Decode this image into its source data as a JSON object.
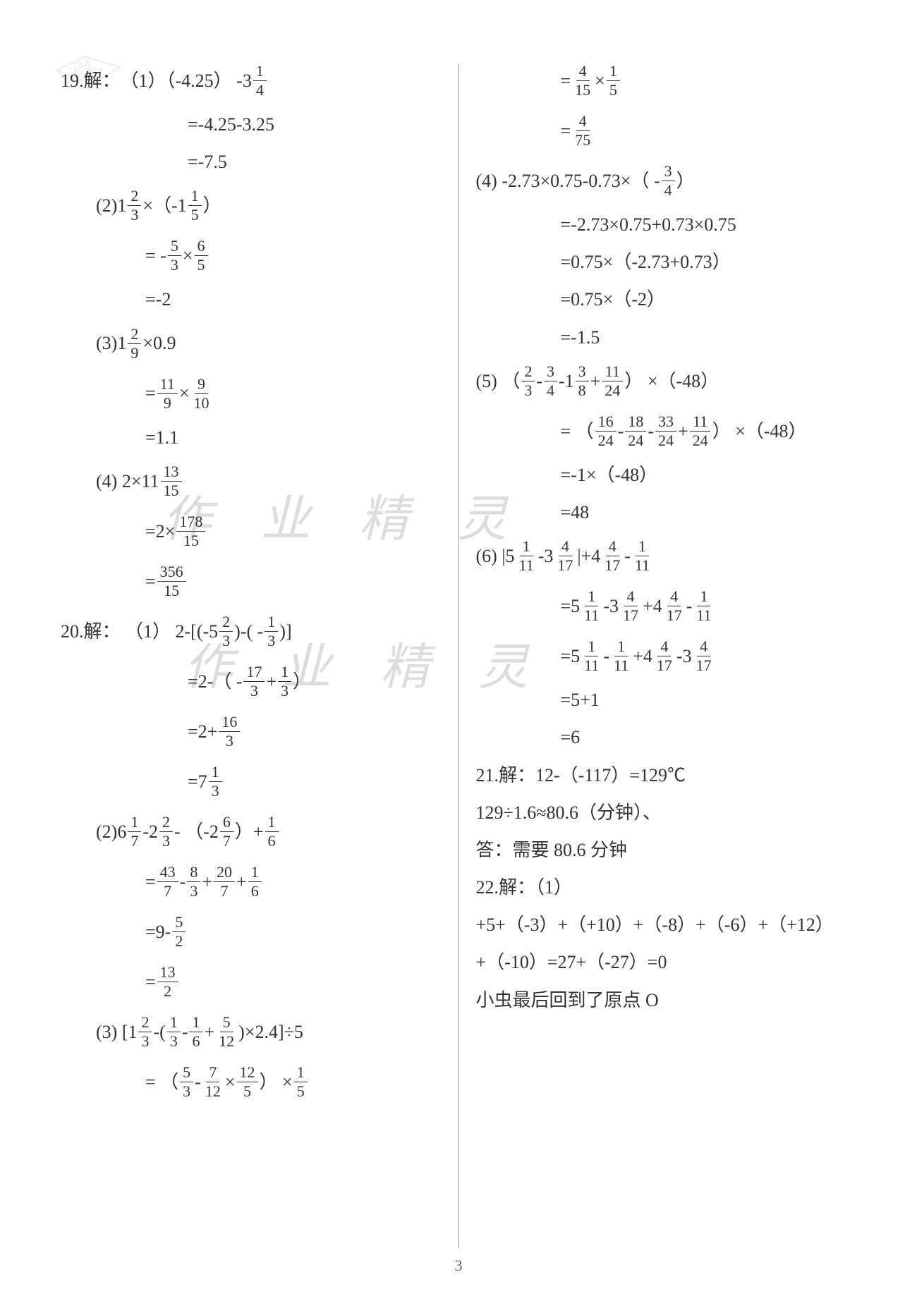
{
  "page_number": "3",
  "watermark_text": "作 业 精 灵",
  "book_stamp_text": "作业\n精灵",
  "left_column": [
    {
      "indent": 0,
      "parts": [
        {
          "t": "19.解："
        },
        {
          "t": "（1）（-4.25） -"
        },
        {
          "mix": "3",
          "n": "1",
          "d": "4"
        }
      ]
    },
    {
      "indent": 3,
      "parts": [
        {
          "t": "=-4.25-3.25"
        }
      ]
    },
    {
      "indent": 3,
      "parts": [
        {
          "t": "=-7.5"
        }
      ]
    },
    {
      "indent": 1,
      "parts": [
        {
          "t": "(2)  "
        },
        {
          "mix": "1",
          "n": "2",
          "d": "3"
        },
        {
          "t": " ×（ "
        },
        {
          "mix": "-1",
          "n": "1",
          "d": "5"
        },
        {
          "t": " ）"
        }
      ]
    },
    {
      "indent": 2,
      "parts": [
        {
          "t": "= - "
        },
        {
          "n": "5",
          "d": "3"
        },
        {
          "t": " × "
        },
        {
          "n": "6",
          "d": "5"
        }
      ]
    },
    {
      "indent": 2,
      "parts": [
        {
          "t": "=-2"
        }
      ]
    },
    {
      "indent": 1,
      "parts": [
        {
          "t": "(3)  "
        },
        {
          "mix": "1",
          "n": "2",
          "d": "9"
        },
        {
          "t": " ×0.9"
        }
      ]
    },
    {
      "indent": 2,
      "parts": [
        {
          "t": "= "
        },
        {
          "n": "11",
          "d": "9"
        },
        {
          "t": " × "
        },
        {
          "n": "9",
          "d": "10"
        }
      ]
    },
    {
      "indent": 2,
      "parts": [
        {
          "t": "=1.1"
        }
      ]
    },
    {
      "indent": 1,
      "parts": [
        {
          "t": "(4)  2× "
        },
        {
          "mix": "11",
          "n": "13",
          "d": "15"
        }
      ]
    },
    {
      "indent": 2,
      "parts": [
        {
          "t": "=2× "
        },
        {
          "n": "178",
          "d": "15"
        }
      ]
    },
    {
      "indent": 2,
      "parts": [
        {
          "t": "= "
        },
        {
          "n": "356",
          "d": "15"
        }
      ]
    },
    {
      "indent": 0,
      "parts": [
        {
          "t": "20.解：  （1） 2-[( "
        },
        {
          "mix": "-5",
          "n": "2",
          "d": "3"
        },
        {
          "t": " )-( - "
        },
        {
          "n": "1",
          "d": "3"
        },
        {
          "t": " )]"
        }
      ]
    },
    {
      "indent": 3,
      "parts": [
        {
          "t": "=2-（ - "
        },
        {
          "n": "17",
          "d": "3"
        },
        {
          "t": " + "
        },
        {
          "n": "1",
          "d": "3"
        },
        {
          "t": " ）"
        }
      ]
    },
    {
      "indent": 3,
      "parts": [
        {
          "t": "=2+ "
        },
        {
          "n": "16",
          "d": "3"
        }
      ]
    },
    {
      "indent": 3,
      "parts": [
        {
          "t": "= "
        },
        {
          "mix": "7",
          "n": "1",
          "d": "3"
        }
      ]
    },
    {
      "indent": 1,
      "parts": [
        {
          "t": "(2)  "
        },
        {
          "mix": "6",
          "n": "1",
          "d": "7"
        },
        {
          "t": " - "
        },
        {
          "mix": "2",
          "n": "2",
          "d": "3"
        },
        {
          "t": " - （ "
        },
        {
          "mix": "-2",
          "n": "6",
          "d": "7"
        },
        {
          "t": " ）+ "
        },
        {
          "n": "1",
          "d": "6"
        }
      ]
    },
    {
      "indent": 2,
      "parts": [
        {
          "t": "= "
        },
        {
          "n": "43",
          "d": "7"
        },
        {
          "t": " - "
        },
        {
          "n": "8",
          "d": "3"
        },
        {
          "t": " + "
        },
        {
          "n": "20",
          "d": "7"
        },
        {
          "t": " + "
        },
        {
          "n": "1",
          "d": "6"
        }
      ]
    },
    {
      "indent": 2,
      "parts": [
        {
          "t": "=9- "
        },
        {
          "n": "5",
          "d": "2"
        }
      ]
    },
    {
      "indent": 2,
      "parts": [
        {
          "t": "= "
        },
        {
          "n": "13",
          "d": "2"
        }
      ]
    },
    {
      "indent": 1,
      "parts": [
        {
          "t": "(3)  [ "
        },
        {
          "mix": "1",
          "n": "2",
          "d": "3"
        },
        {
          "t": " -( "
        },
        {
          "n": "1",
          "d": "3"
        },
        {
          "t": " - "
        },
        {
          "n": "1",
          "d": "6"
        },
        {
          "t": " + "
        },
        {
          "n": "5",
          "d": "12"
        },
        {
          "t": " )×2.4]÷5"
        }
      ]
    },
    {
      "indent": 2,
      "parts": [
        {
          "t": "= （ "
        },
        {
          "n": "5",
          "d": "3"
        },
        {
          "t": " - "
        },
        {
          "n": "7",
          "d": "12"
        },
        {
          "t": " × "
        },
        {
          "n": "12",
          "d": "5"
        },
        {
          "t": " ） × "
        },
        {
          "n": "1",
          "d": "5"
        }
      ]
    }
  ],
  "right_column": [
    {
      "indent": 2,
      "parts": [
        {
          "t": "= "
        },
        {
          "n": "4",
          "d": "15"
        },
        {
          "t": " × "
        },
        {
          "n": "1",
          "d": "5"
        }
      ]
    },
    {
      "indent": 2,
      "parts": [
        {
          "t": "= "
        },
        {
          "n": "4",
          "d": "75"
        }
      ]
    },
    {
      "indent": 0,
      "parts": [
        {
          "t": "(4)  -2.73×0.75-0.73×（ - "
        },
        {
          "n": "3",
          "d": "4"
        },
        {
          "t": " ）"
        }
      ]
    },
    {
      "indent": 2,
      "parts": [
        {
          "t": "=-2.73×0.75+0.73×0.75"
        }
      ]
    },
    {
      "indent": 2,
      "parts": [
        {
          "t": "=0.75×（-2.73+0.73）"
        }
      ]
    },
    {
      "indent": 2,
      "parts": [
        {
          "t": "=0.75×（-2）"
        }
      ]
    },
    {
      "indent": 2,
      "parts": [
        {
          "t": "=-1.5"
        }
      ]
    },
    {
      "indent": 0,
      "parts": [
        {
          "t": "(5) （ "
        },
        {
          "n": "2",
          "d": "3"
        },
        {
          "t": " - "
        },
        {
          "n": "3",
          "d": "4"
        },
        {
          "t": " - "
        },
        {
          "mix": "1",
          "n": "3",
          "d": "8"
        },
        {
          "t": " + "
        },
        {
          "n": "11",
          "d": "24"
        },
        {
          "t": " ） ×（-48）"
        }
      ]
    },
    {
      "indent": 2,
      "parts": [
        {
          "t": "= （ "
        },
        {
          "n": "16",
          "d": "24"
        },
        {
          "t": " - "
        },
        {
          "n": "18",
          "d": "24"
        },
        {
          "t": " - "
        },
        {
          "n": "33",
          "d": "24"
        },
        {
          "t": " + "
        },
        {
          "n": "11",
          "d": "24"
        },
        {
          "t": " ） ×（-48）"
        }
      ]
    },
    {
      "indent": 2,
      "parts": [
        {
          "t": "=-1×（-48）"
        }
      ]
    },
    {
      "indent": 2,
      "parts": [
        {
          "t": "=48"
        }
      ]
    },
    {
      "indent": 0,
      "parts": [
        {
          "t": "(6)  | "
        },
        {
          "mix": "5",
          "n": "1",
          "d": "11"
        },
        {
          "t": " - "
        },
        {
          "mix": "3",
          "n": "4",
          "d": "17"
        },
        {
          "t": " |+ "
        },
        {
          "mix": "4",
          "n": "4",
          "d": "17"
        },
        {
          "t": " - "
        },
        {
          "n": "1",
          "d": "11"
        }
      ]
    },
    {
      "indent": 2,
      "parts": [
        {
          "t": "= "
        },
        {
          "mix": "5",
          "n": "1",
          "d": "11"
        },
        {
          "t": " - "
        },
        {
          "mix": "3",
          "n": "4",
          "d": "17"
        },
        {
          "t": " + "
        },
        {
          "mix": "4",
          "n": "4",
          "d": "17"
        },
        {
          "t": " - "
        },
        {
          "n": "1",
          "d": "11"
        }
      ]
    },
    {
      "indent": 2,
      "parts": [
        {
          "t": "= "
        },
        {
          "mix": "5",
          "n": "1",
          "d": "11"
        },
        {
          "t": " - "
        },
        {
          "n": "1",
          "d": "11"
        },
        {
          "t": " + "
        },
        {
          "mix": "4",
          "n": "4",
          "d": "17"
        },
        {
          "t": " - "
        },
        {
          "mix": "3",
          "n": "4",
          "d": "17"
        }
      ]
    },
    {
      "indent": 2,
      "parts": [
        {
          "t": "=5+1"
        }
      ]
    },
    {
      "indent": 2,
      "parts": [
        {
          "t": "=6"
        }
      ]
    },
    {
      "indent": 0,
      "parts": [
        {
          "t": "21.解：12-（-117）=129℃"
        }
      ]
    },
    {
      "indent": 0,
      "parts": [
        {
          "t": "129÷1.6≈80.6（分钟）、"
        }
      ]
    },
    {
      "indent": 0,
      "parts": [
        {
          "t": "答：需要 80.6 分钟"
        }
      ]
    },
    {
      "indent": 0,
      "parts": [
        {
          "t": "22.解：（1）"
        }
      ]
    },
    {
      "indent": 0,
      "parts": [
        {
          "t": "+5+（-3）+（+10）+（-8）+（-6）+（+12）"
        }
      ]
    },
    {
      "indent": 0,
      "parts": [
        {
          "t": "+（-10）=27+（-27）=0"
        }
      ]
    },
    {
      "indent": 0,
      "parts": [
        {
          "t": "小虫最后回到了原点 O"
        }
      ]
    }
  ]
}
